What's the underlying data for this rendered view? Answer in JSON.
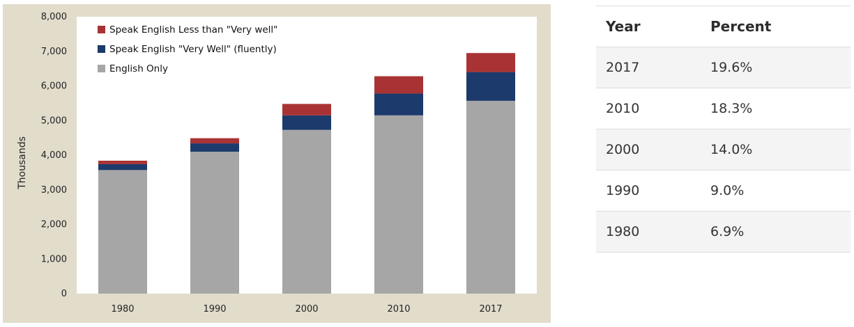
{
  "chart_data": {
    "type": "bar",
    "stacked": true,
    "title": "",
    "xlabel": "",
    "ylabel": "Thousands",
    "categories": [
      "1980",
      "1990",
      "2000",
      "2010",
      "2017"
    ],
    "ylim": [
      0,
      8000
    ],
    "yticks": [
      "0",
      "1,000",
      "2,000",
      "3,000",
      "4,000",
      "5,000",
      "6,000",
      "7,000",
      "8,000"
    ],
    "series": [
      {
        "name": "English Only",
        "values": [
          3570,
          4100,
          4730,
          5150,
          5570
        ]
      },
      {
        "name": "Speak English \"Very Well\" (fluently)",
        "values": [
          170,
          240,
          420,
          630,
          830
        ]
      },
      {
        "name": "Speak English Less than \"Very well\"",
        "values": [
          100,
          150,
          330,
          500,
          550
        ]
      }
    ],
    "legend_order": [
      2,
      1,
      0
    ],
    "legend_position": "top-left",
    "grid": false,
    "colors": [
      "#a6a6a6",
      "#1c3a6b",
      "#a93334"
    ]
  },
  "table": {
    "headers": [
      "Year",
      "Percent"
    ],
    "rows": [
      [
        "2017",
        "19.6%"
      ],
      [
        "2010",
        "18.3%"
      ],
      [
        "2000",
        "14.0%"
      ],
      [
        "1990",
        "9.0%"
      ],
      [
        "1980",
        "6.9%"
      ]
    ]
  }
}
